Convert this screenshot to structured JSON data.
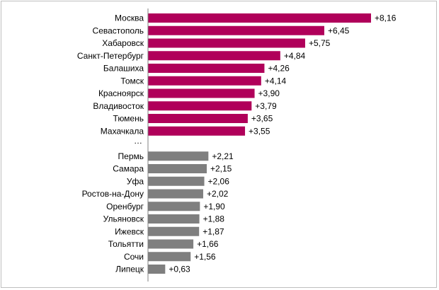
{
  "chart_data": {
    "type": "bar",
    "orientation": "horizontal",
    "grid": false,
    "xlim": [
      0,
      9
    ],
    "categories": [
      "Москва",
      "Севастополь",
      "Хабаровск",
      "Санкт-Петербург",
      "Балашиха",
      "Томск",
      "Красноярск",
      "Владивосток",
      "Тюмень",
      "Махачкала",
      "…",
      "Пермь",
      "Самара",
      "Уфа",
      "Ростов-на-Дону",
      "Оренбург",
      "Ульяновск",
      "Ижевск",
      "Тольятти",
      "Сочи",
      "Липецк"
    ],
    "values": [
      8.16,
      6.45,
      5.75,
      4.84,
      4.26,
      4.14,
      3.9,
      3.79,
      3.65,
      3.55,
      null,
      2.21,
      2.15,
      2.06,
      2.02,
      1.9,
      1.88,
      1.87,
      1.66,
      1.56,
      0.63
    ],
    "value_labels": [
      "+8,16",
      "+6,45",
      "+5,75",
      "+4,84",
      "+4,26",
      "+4,14",
      "+3,90",
      "+3,79",
      "+3,65",
      "+3,55",
      "",
      "+2,21",
      "+2,15",
      "+2,06",
      "+2,02",
      "+1,90",
      "+1,88",
      "+1,87",
      "+1,66",
      "+1,56",
      "+0,63"
    ],
    "groups": [
      "top",
      "top",
      "top",
      "top",
      "top",
      "top",
      "top",
      "top",
      "top",
      "top",
      "gap",
      "bottom",
      "bottom",
      "bottom",
      "bottom",
      "bottom",
      "bottom",
      "bottom",
      "bottom",
      "bottom",
      "bottom"
    ],
    "colors": {
      "top": "#B0005A",
      "bottom": "#7F7F7F",
      "axis": "#808080",
      "frame": "#BFBFBF"
    }
  }
}
